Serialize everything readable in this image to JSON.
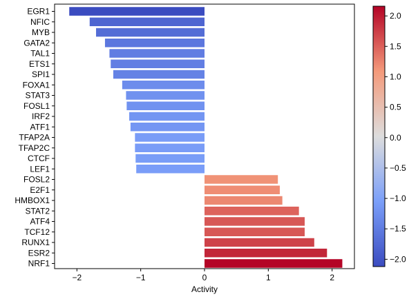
{
  "chart_data": {
    "type": "bar",
    "orientation": "horizontal",
    "xlabel": "Activity",
    "ylabel": "",
    "xlim": [
      -2.35,
      2.35
    ],
    "xticks": [
      -2,
      -1,
      0,
      1,
      2
    ],
    "xtick_labels": [
      "−2",
      "−1",
      "0",
      "1",
      "2"
    ],
    "grid": false,
    "categories": [
      "EGR1",
      "NFIC",
      "MYB",
      "GATA2",
      "TAL1",
      "ETS1",
      "SPI1",
      "FOXA1",
      "STAT3",
      "FOSL1",
      "IRF2",
      "ATF1",
      "TFAP2A",
      "TFAP2C",
      "CTCF",
      "LEF1",
      "FOSL2",
      "E2F1",
      "HMBOX1",
      "STAT2",
      "ATF4",
      "TCF12",
      "RUNX1",
      "ESR2",
      "NRF1"
    ],
    "values": [
      -2.12,
      -1.8,
      -1.7,
      -1.56,
      -1.49,
      -1.47,
      -1.43,
      -1.29,
      -1.23,
      -1.22,
      -1.18,
      -1.16,
      -1.09,
      -1.09,
      -1.08,
      -1.07,
      1.15,
      1.18,
      1.22,
      1.48,
      1.57,
      1.57,
      1.72,
      1.92,
      2.16
    ],
    "colorbar": {
      "colormap": "coolwarm",
      "range": [
        -2.12,
        2.16
      ],
      "ticks": [
        -2.0,
        -1.5,
        -1.0,
        -0.5,
        0.0,
        0.5,
        1.0,
        1.5,
        2.0
      ],
      "tick_labels": [
        "−2.0",
        "−1.5",
        "−1.0",
        "−0.5",
        "0.0",
        "0.5",
        "1.0",
        "1.5",
        "2.0"
      ]
    }
  }
}
